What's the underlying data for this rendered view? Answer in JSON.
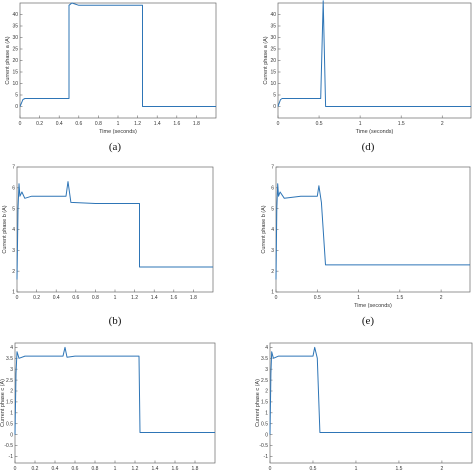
{
  "chart_data": [
    {
      "type": "line",
      "panel": "(a)",
      "xlabel": "Time (seconds)",
      "ylabel": "Current phase a  (A)",
      "xticks": [
        "0",
        "0.2",
        "0.4",
        "0.6",
        "0.8",
        "1",
        "1.2",
        "1.4",
        "1.6",
        "1.8"
      ],
      "yticks": [
        "0",
        "5",
        "10",
        "15",
        "20",
        "25",
        "30",
        "35",
        "40"
      ],
      "xlim": [
        0,
        2.0
      ],
      "ylim": [
        -5,
        45
      ],
      "series": [
        {
          "x": [
            0,
            0.01,
            0.03,
            0.05,
            0.5,
            0.5,
            0.53,
            0.6,
            1.0,
            1.25,
            1.25,
            1.6,
            2.0
          ],
          "y": [
            0,
            1,
            3,
            3.5,
            3.5,
            44,
            45,
            44,
            44,
            44,
            0,
            0,
            0
          ]
        }
      ]
    },
    {
      "type": "line",
      "panel": "(d)",
      "xlabel": "Time (seconds)",
      "ylabel": "Current phase a  (A)",
      "xticks": [
        "0",
        "0.5",
        "1",
        "1.5",
        "2"
      ],
      "yticks": [
        "0",
        "5",
        "10",
        "15",
        "20",
        "25",
        "30",
        "35",
        "40"
      ],
      "xlim": [
        0,
        2.35
      ],
      "ylim": [
        -5,
        45
      ],
      "series": [
        {
          "x": [
            0,
            0.01,
            0.03,
            0.05,
            0.52,
            0.55,
            0.58,
            0.6,
            1.2,
            2.35
          ],
          "y": [
            0,
            1,
            3,
            3.5,
            3.5,
            46,
            0,
            0,
            0,
            0
          ]
        }
      ]
    },
    {
      "type": "line",
      "panel": "(b)",
      "xlabel": "",
      "ylabel": "Current phase b  (A)",
      "xticks": [
        "0",
        "0.2",
        "0.4",
        "0.6",
        "0.8",
        "1",
        "1.2",
        "1.4",
        "1.6",
        "1.8"
      ],
      "yticks": [
        "1",
        "2",
        "3",
        "4",
        "5",
        "6",
        "7"
      ],
      "xlim": [
        0,
        2.0
      ],
      "ylim": [
        1,
        7
      ],
      "series": [
        {
          "x": [
            0,
            0.01,
            0.02,
            0.03,
            0.05,
            0.08,
            0.15,
            0.3,
            0.45,
            0.5,
            0.52,
            0.55,
            0.8,
            1.0,
            1.25,
            1.25,
            1.3,
            1.6,
            2.0
          ],
          "y": [
            1.6,
            5.0,
            6.2,
            5.6,
            5.8,
            5.5,
            5.6,
            5.6,
            5.6,
            5.6,
            6.3,
            5.3,
            5.25,
            5.25,
            5.25,
            2.2,
            2.2,
            2.2,
            2.2
          ]
        }
      ]
    },
    {
      "type": "line",
      "panel": "(e)",
      "xlabel": "Time (seconds)",
      "ylabel": "Current phase b  (A)",
      "xticks": [
        "0",
        "0.5",
        "1",
        "1.5",
        "2"
      ],
      "yticks": [
        "1",
        "2",
        "3",
        "4",
        "5",
        "6",
        "7"
      ],
      "xlim": [
        0,
        2.35
      ],
      "ylim": [
        1,
        7
      ],
      "series": [
        {
          "x": [
            0,
            0.01,
            0.02,
            0.03,
            0.05,
            0.1,
            0.3,
            0.5,
            0.52,
            0.55,
            0.6,
            1.2,
            2.35
          ],
          "y": [
            1.6,
            5.0,
            6.2,
            5.6,
            5.8,
            5.5,
            5.6,
            5.6,
            6.1,
            5.3,
            2.3,
            2.3,
            2.3
          ]
        }
      ]
    },
    {
      "type": "line",
      "panel": "",
      "xlabel": "Time (seconds)",
      "ylabel": "Current phase c  (A)",
      "xticks": [
        "0",
        "0.2",
        "0.4",
        "0.6",
        "0.8",
        "1",
        "1.2",
        "1.4",
        "1.6",
        "1.8"
      ],
      "yticks": [
        "-1",
        "-0.5",
        "0",
        "0.5",
        "1",
        "1.5",
        "2",
        "2.5",
        "3",
        "3.5",
        "4"
      ],
      "xlim": [
        0,
        2.0
      ],
      "ylim": [
        -1.3,
        4.2
      ],
      "series": [
        {
          "x": [
            0,
            0.01,
            0.02,
            0.04,
            0.1,
            0.3,
            0.48,
            0.5,
            0.52,
            0.6,
            1.0,
            1.24,
            1.25,
            1.3,
            1.6,
            2.0
          ],
          "y": [
            0,
            2.8,
            3.8,
            3.5,
            3.6,
            3.6,
            3.6,
            4.0,
            3.55,
            3.6,
            3.6,
            3.6,
            0.1,
            0.1,
            0.1,
            0.1
          ]
        }
      ]
    },
    {
      "type": "line",
      "panel": "",
      "xlabel": "Time (seconds)",
      "ylabel": "Current phase c  (A)",
      "xticks": [
        "0",
        "0.5",
        "1",
        "1.5",
        "2"
      ],
      "yticks": [
        "-1",
        "-0.5",
        "0",
        "0.5",
        "1",
        "1.5",
        "2",
        "2.5",
        "3",
        "3.5",
        "4"
      ],
      "xlim": [
        0,
        2.35
      ],
      "ylim": [
        -1.3,
        4.2
      ],
      "series": [
        {
          "x": [
            0,
            0.01,
            0.02,
            0.04,
            0.1,
            0.3,
            0.5,
            0.52,
            0.55,
            0.58,
            0.6,
            1.2,
            2.35
          ],
          "y": [
            0,
            2.8,
            3.8,
            3.5,
            3.6,
            3.6,
            3.6,
            4.0,
            3.5,
            0.1,
            0.1,
            0.1,
            0.1
          ]
        }
      ]
    }
  ],
  "panel_labels": {
    "a": "(a)",
    "b": "(b)",
    "d": "(d)",
    "e": "(e)"
  },
  "colors": {
    "trace": "#2e75b6",
    "axis": "#6a6a6a"
  }
}
